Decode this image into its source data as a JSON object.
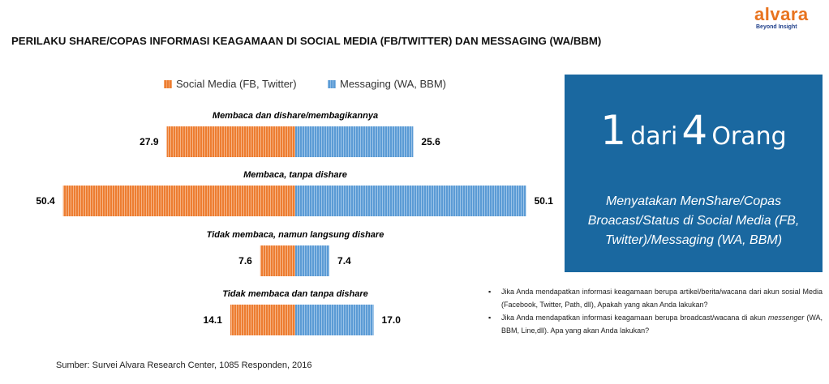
{
  "logo": {
    "word": "alvara",
    "tagline": "Beyond Insight"
  },
  "title": "PERILAKU SHARE/COPAS INFORMASI KEAGAMAAN DI SOCIAL MEDIA (FB/TWITTER) DAN MESSAGING (WA/BBM)",
  "colors": {
    "social": "#ED7D31",
    "messaging": "#5B9BD5",
    "callout_bg": "#1A68A0"
  },
  "chart_data": {
    "type": "bar",
    "orientation": "horizontal-diverging",
    "categories": [
      "Membaca dan dishare/membagikannya",
      "Membaca, tanpa dishare",
      "Tidak membaca, namun langsung dishare",
      "Tidak membaca dan tanpa dishare"
    ],
    "series": [
      {
        "name": "Social Media (FB, Twitter)",
        "values": [
          27.9,
          50.4,
          7.6,
          14.1
        ]
      },
      {
        "name": "Messaging (WA, BBM)",
        "values": [
          25.6,
          50.1,
          7.4,
          17.0
        ]
      }
    ],
    "value_labels_social": [
      "27.9",
      "50.4",
      "7.6",
      "14.1"
    ],
    "value_labels_messaging": [
      "25.6",
      "50.1",
      "7.4",
      "17.0"
    ],
    "legend": [
      "Social Media (FB, Twitter)",
      "Messaging (WA, BBM)"
    ],
    "legend_position": "top",
    "title": "",
    "xlabel": "",
    "ylabel": ""
  },
  "callout": {
    "num1": "1",
    "word1": "dari",
    "num2": "4",
    "word2": "Orang",
    "description": "Menyatakan MenShare/Copas Broacast/Status di Social Media (FB, Twitter)/Messaging (WA, BBM)"
  },
  "notes": {
    "note1": "Jika Anda mendapatkan informasi keagamaan berupa artikel/berita/wacana dari akun sosial Media (Facebook, Twitter, Path, dll), Apakah yang akan Anda lakukan?",
    "note2_prefix": "Jika Anda mendapatkan informasi keagamaan berupa broadcast/wacana di akun",
    "note2_em": "messenger",
    "note2_suffix": "(WA, BBM, Line,dll). Apa yang akan Anda lakukan?"
  },
  "source": "Sumber: Survei Alvara Research Center, 1085 Responden, 2016"
}
